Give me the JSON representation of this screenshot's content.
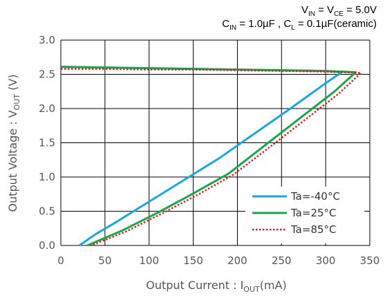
{
  "conditions": {
    "line1": {
      "v1": "V",
      "v1_sub": "IN",
      "eq": " = V",
      "v2_sub": "CE",
      "rest": " = 5.0V"
    },
    "line2": {
      "c1": "C",
      "c1_sub": "IN",
      "mid": " = 1.0µF , C",
      "c2_sub": "L",
      "rest": " = 0.1µF(ceramic)"
    }
  },
  "chart_data": {
    "type": "line",
    "xlabel": {
      "main": "Output Current : I",
      "sub": "OUT",
      "unit": "(mA)"
    },
    "ylabel": {
      "main": "Output Voltage : V",
      "sub": "OUT",
      "unit": " (V)"
    },
    "xlim": [
      0,
      350
    ],
    "ylim": [
      0,
      3.0
    ],
    "xticks": [
      "0",
      "50",
      "100",
      "150",
      "200",
      "250",
      "300",
      "350"
    ],
    "yticks": [
      "0.0",
      "0.5",
      "1.0",
      "1.5",
      "2.0",
      "2.5",
      "3.0"
    ],
    "grid": true,
    "legend_position": "bottom-right",
    "series": [
      {
        "name": "Ta=-40°C",
        "color": "#1aa7e0",
        "style": "solid",
        "x": [
          0,
          50,
          100,
          150,
          200,
          250,
          300,
          318,
          300,
          260,
          220,
          180,
          140,
          100,
          60,
          40,
          21
        ],
        "y": [
          2.61,
          2.6,
          2.59,
          2.58,
          2.57,
          2.56,
          2.55,
          2.53,
          2.37,
          2.0,
          1.64,
          1.28,
          0.96,
          0.64,
          0.32,
          0.17,
          0.0
        ]
      },
      {
        "name": "Ta=25°C",
        "color": "#1aa64a",
        "style": "solid",
        "x": [
          0,
          50,
          100,
          150,
          200,
          250,
          300,
          334,
          310,
          270,
          230,
          190,
          150,
          110,
          70,
          48,
          30
        ],
        "y": [
          2.61,
          2.6,
          2.59,
          2.58,
          2.57,
          2.56,
          2.55,
          2.53,
          2.25,
          1.85,
          1.45,
          1.05,
          0.76,
          0.48,
          0.22,
          0.1,
          0.0
        ]
      },
      {
        "name": "Ta=85°C",
        "color": "#d62020",
        "style": "dotted",
        "x": [
          0,
          50,
          100,
          150,
          200,
          250,
          300,
          340,
          315,
          275,
          235,
          195,
          155,
          115,
          75,
          52,
          34
        ],
        "y": [
          2.58,
          2.58,
          2.57,
          2.57,
          2.56,
          2.55,
          2.54,
          2.52,
          2.22,
          1.82,
          1.42,
          1.03,
          0.74,
          0.47,
          0.21,
          0.09,
          0.0
        ]
      }
    ]
  }
}
